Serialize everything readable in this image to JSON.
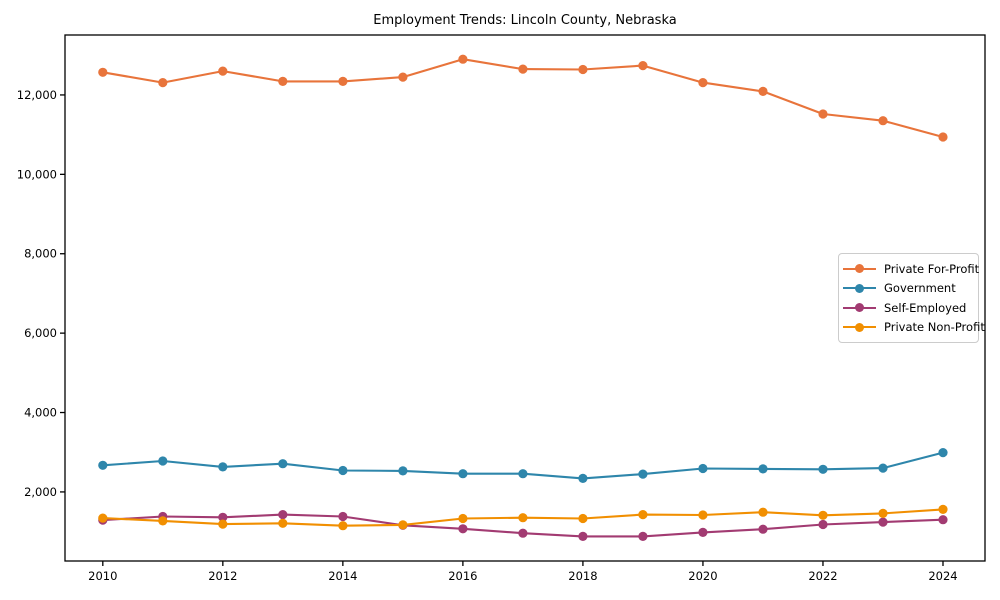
{
  "title": "Employment Trends: Lincoln County, Nebraska",
  "chart_data": {
    "type": "line",
    "title": "Employment Trends: Lincoln County, Nebraska",
    "xlabel": "",
    "ylabel": "",
    "grid": false,
    "legend_position": "center right",
    "x": [
      2010,
      2011,
      2012,
      2013,
      2014,
      2015,
      2016,
      2017,
      2018,
      2019,
      2020,
      2021,
      2022,
      2023,
      2024
    ],
    "series": [
      {
        "name": "Private For-Profit",
        "color": "#E8743B",
        "values": [
          12570,
          12310,
          12600,
          12340,
          12340,
          12450,
          12900,
          12650,
          12640,
          12740,
          12310,
          12090,
          11520,
          11350,
          10940
        ]
      },
      {
        "name": "Government",
        "color": "#2E86AB",
        "values": [
          2670,
          2780,
          2630,
          2710,
          2540,
          2530,
          2460,
          2460,
          2340,
          2450,
          2590,
          2580,
          2570,
          2600,
          2990
        ]
      },
      {
        "name": "Self-Employed",
        "color": "#A23B72",
        "values": [
          1290,
          1380,
          1360,
          1430,
          1380,
          1160,
          1070,
          960,
          880,
          880,
          980,
          1060,
          1180,
          1240,
          1300
        ]
      },
      {
        "name": "Private Non-Profit",
        "color": "#F18F01",
        "values": [
          1340,
          1270,
          1190,
          1210,
          1150,
          1170,
          1330,
          1350,
          1330,
          1430,
          1420,
          1490,
          1410,
          1460,
          1560
        ]
      }
    ],
    "xticks": [
      2010,
      2012,
      2014,
      2016,
      2018,
      2020,
      2022,
      2024
    ],
    "xtick_labels": [
      "2010",
      "2012",
      "2014",
      "2016",
      "2018",
      "2020",
      "2022",
      "2024"
    ],
    "yticks": [
      2000,
      4000,
      6000,
      8000,
      10000,
      12000
    ],
    "ytick_labels": [
      "2,000",
      "4,000",
      "6,000",
      "8,000",
      "10,000",
      "12,000"
    ],
    "xlim": [
      2009.37,
      2024.7
    ],
    "ylim": [
      260,
      13510
    ],
    "axis_color": "#000000"
  }
}
